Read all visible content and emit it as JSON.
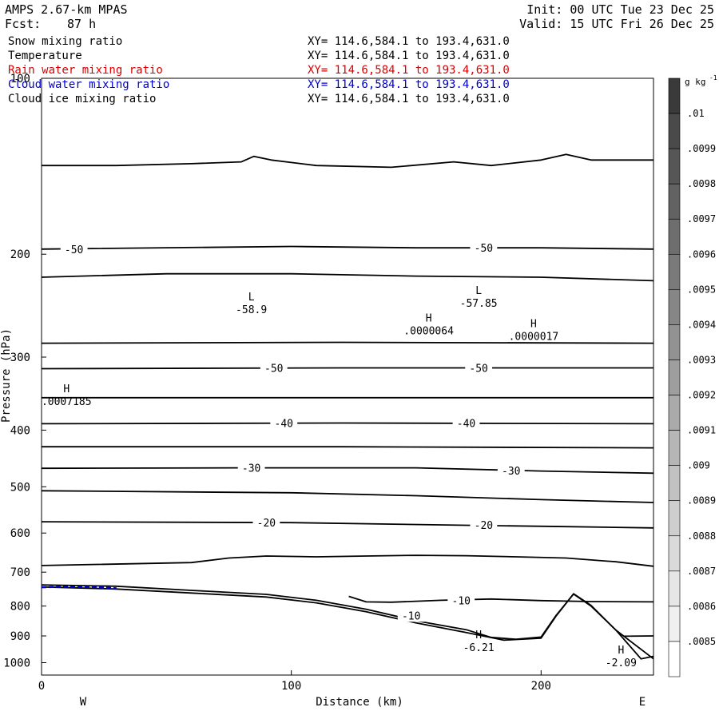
{
  "header": {
    "model": "AMPS 2.67-km MPAS",
    "fcst_label": "Fcst:",
    "fcst_value": "87 h",
    "init": "Init: 00 UTC Tue 23 Dec 25",
    "valid": "Valid: 15 UTC Fri 26 Dec 25"
  },
  "fields": [
    {
      "name": "Snow mixing ratio",
      "xy": "XY= 114.6,584.1 to 193.4,631.0",
      "color": "#000000"
    },
    {
      "name": "Temperature",
      "xy": "XY= 114.6,584.1 to 193.4,631.0",
      "color": "#000000"
    },
    {
      "name": "Rain water mixing ratio",
      "xy": "XY= 114.6,584.1 to 193.4,631.0",
      "color": "#dd0000"
    },
    {
      "name": "Cloud water mixing ratio",
      "xy": "XY= 114.6,584.1 to 193.4,631.0",
      "color": "#0000cc"
    },
    {
      "name": "Cloud ice mixing ratio",
      "xy": "XY= 114.6,584.1 to 193.4,631.0",
      "color": "#000000"
    }
  ],
  "chart_data": {
    "type": "line",
    "xlabel": "Distance (km)",
    "ylabel": "Pressure (hPa)",
    "xlim": [
      0,
      245
    ],
    "ylim": [
      100,
      1050
    ],
    "y_scale": "log",
    "x_ticks": [
      0,
      100,
      200
    ],
    "y_ticks": [
      100,
      200,
      300,
      400,
      500,
      600,
      700,
      800,
      900,
      1000
    ],
    "west_label": "W",
    "east_label": "E",
    "isotherms": [
      {
        "label": "",
        "points": [
          [
            0,
            141
          ],
          [
            30,
            141
          ],
          [
            60,
            140
          ],
          [
            80,
            139
          ],
          [
            85,
            136
          ],
          [
            92,
            138
          ],
          [
            110,
            141
          ],
          [
            140,
            142
          ],
          [
            165,
            139
          ],
          [
            180,
            141
          ],
          [
            200,
            138
          ],
          [
            210,
            135
          ],
          [
            220,
            138
          ],
          [
            245,
            138
          ]
        ]
      },
      {
        "label": "",
        "points": [
          [
            0,
            196
          ],
          [
            100,
            194
          ],
          [
            150,
            195
          ],
          [
            200,
            195
          ],
          [
            245,
            196
          ]
        ]
      },
      {
        "label": "",
        "points": [
          [
            0,
            219
          ],
          [
            50,
            216
          ],
          [
            100,
            216
          ],
          [
            150,
            218
          ],
          [
            200,
            219
          ],
          [
            245,
            222
          ]
        ]
      },
      {
        "label": "",
        "points": [
          [
            0,
            284
          ],
          [
            120,
            283
          ],
          [
            245,
            284
          ]
        ]
      },
      {
        "label": "",
        "points": [
          [
            0,
            314
          ],
          [
            120,
            313
          ],
          [
            245,
            313
          ]
        ]
      },
      {
        "label": "",
        "points": [
          [
            0,
            352
          ],
          [
            120,
            352
          ],
          [
            245,
            352
          ]
        ]
      },
      {
        "label": "",
        "points": [
          [
            0,
            390
          ],
          [
            120,
            389
          ],
          [
            245,
            390
          ]
        ]
      },
      {
        "label": "",
        "points": [
          [
            0,
            427
          ],
          [
            120,
            427
          ],
          [
            245,
            429
          ]
        ]
      },
      {
        "label": "",
        "points": [
          [
            0,
            465
          ],
          [
            80,
            464
          ],
          [
            150,
            464
          ],
          [
            200,
            470
          ],
          [
            245,
            474
          ]
        ]
      },
      {
        "label": "",
        "points": [
          [
            0,
            508
          ],
          [
            100,
            512
          ],
          [
            150,
            518
          ],
          [
            200,
            526
          ],
          [
            245,
            532
          ]
        ]
      },
      {
        "label": "",
        "points": [
          [
            0,
            574
          ],
          [
            100,
            576
          ],
          [
            170,
            582
          ],
          [
            210,
            585
          ],
          [
            245,
            588
          ]
        ]
      },
      {
        "label": "",
        "points": [
          [
            0,
            682
          ],
          [
            60,
            674
          ],
          [
            75,
            662
          ],
          [
            90,
            657
          ],
          [
            110,
            659
          ],
          [
            130,
            657
          ],
          [
            150,
            655
          ],
          [
            170,
            656
          ],
          [
            190,
            659
          ],
          [
            210,
            662
          ],
          [
            230,
            672
          ],
          [
            245,
            684
          ]
        ]
      },
      {
        "label": "",
        "points": [
          [
            0,
            736
          ],
          [
            30,
            740
          ],
          [
            60,
            752
          ],
          [
            90,
            764
          ],
          [
            110,
            782
          ],
          [
            130,
            810
          ],
          [
            150,
            848
          ],
          [
            170,
            878
          ],
          [
            180,
            905
          ],
          [
            190,
            912
          ],
          [
            200,
            904
          ],
          [
            206,
            830
          ],
          [
            213,
            763
          ],
          [
            220,
            800
          ],
          [
            230,
            880
          ],
          [
            245,
            985
          ]
        ]
      },
      {
        "label": "",
        "points": [
          [
            0,
            742
          ],
          [
            30,
            748
          ],
          [
            60,
            760
          ],
          [
            90,
            772
          ],
          [
            110,
            790
          ],
          [
            130,
            818
          ],
          [
            150,
            855
          ],
          [
            170,
            888
          ],
          [
            185,
            915
          ],
          [
            200,
            908
          ],
          [
            206,
            832
          ],
          [
            213,
            762
          ],
          [
            220,
            798
          ],
          [
            230,
            880
          ],
          [
            240,
            985
          ],
          [
            245,
            975
          ]
        ]
      },
      {
        "label": "-10",
        "points": [
          [
            123,
            770
          ],
          [
            130,
            787
          ],
          [
            140,
            788
          ],
          [
            160,
            782
          ],
          [
            180,
            778
          ],
          [
            200,
            783
          ],
          [
            220,
            786
          ],
          [
            245,
            787
          ]
        ]
      },
      {
        "label": "",
        "points": [
          [
            233,
            901
          ],
          [
            245,
            900
          ]
        ]
      }
    ],
    "contour_labels": [
      {
        "text": "-50",
        "x": 13,
        "p": 196
      },
      {
        "text": "-50",
        "x": 177,
        "p": 195
      },
      {
        "text": "-50",
        "x": 93,
        "p": 313
      },
      {
        "text": "-50",
        "x": 175,
        "p": 313
      },
      {
        "text": "-40",
        "x": 97,
        "p": 389
      },
      {
        "text": "-40",
        "x": 170,
        "p": 389
      },
      {
        "text": "-30",
        "x": 84,
        "p": 464
      },
      {
        "text": "-30",
        "x": 188,
        "p": 469
      },
      {
        "text": "-20",
        "x": 90,
        "p": 576
      },
      {
        "text": "-20",
        "x": 177,
        "p": 581
      },
      {
        "text": "-10",
        "x": 168,
        "p": 782
      },
      {
        "text": "-10",
        "x": 148,
        "p": 830
      }
    ],
    "extrema": [
      {
        "type": "L",
        "value": "-58.9",
        "x": 84,
        "p": 243
      },
      {
        "type": "L",
        "value": "-57.85",
        "x": 175,
        "p": 237
      },
      {
        "type": "H",
        "value": ".0000064",
        "x": 155,
        "p": 264
      },
      {
        "type": "H",
        "value": ".0000017",
        "x": 197,
        "p": 270
      },
      {
        "type": "H",
        "value": ".0007185",
        "x": 10,
        "p": 349
      },
      {
        "type": "H",
        "value": "-6.21",
        "x": 175,
        "p": 920
      },
      {
        "type": "H",
        "value": "-2.09",
        "x": 232,
        "p": 977
      }
    ],
    "cloud_water": {
      "color": "#0000cc",
      "points": [
        [
          0,
          743
        ],
        [
          10,
          741
        ],
        [
          20,
          742
        ],
        [
          30,
          746
        ]
      ]
    },
    "colorbar": {
      "unit": "g kg",
      "unit_exp": "-1",
      "labels": [
        ".01",
        ".0099",
        ".0098",
        ".0097",
        ".0096",
        ".0095",
        ".0094",
        ".0093",
        ".0092",
        ".0091",
        ".009",
        ".0089",
        ".0088",
        ".0087",
        ".0086",
        ".0085"
      ],
      "colors": [
        "#3a3a3a",
        "#4a4a4a",
        "#565656",
        "#626262",
        "#6e6e6e",
        "#7a7a7a",
        "#868686",
        "#929292",
        "#9e9e9e",
        "#aaaaaa",
        "#b6b6b6",
        "#c2c2c2",
        "#cecece",
        "#dadada",
        "#e6e6e6",
        "#f0f0f0",
        "#ffffff"
      ]
    }
  }
}
